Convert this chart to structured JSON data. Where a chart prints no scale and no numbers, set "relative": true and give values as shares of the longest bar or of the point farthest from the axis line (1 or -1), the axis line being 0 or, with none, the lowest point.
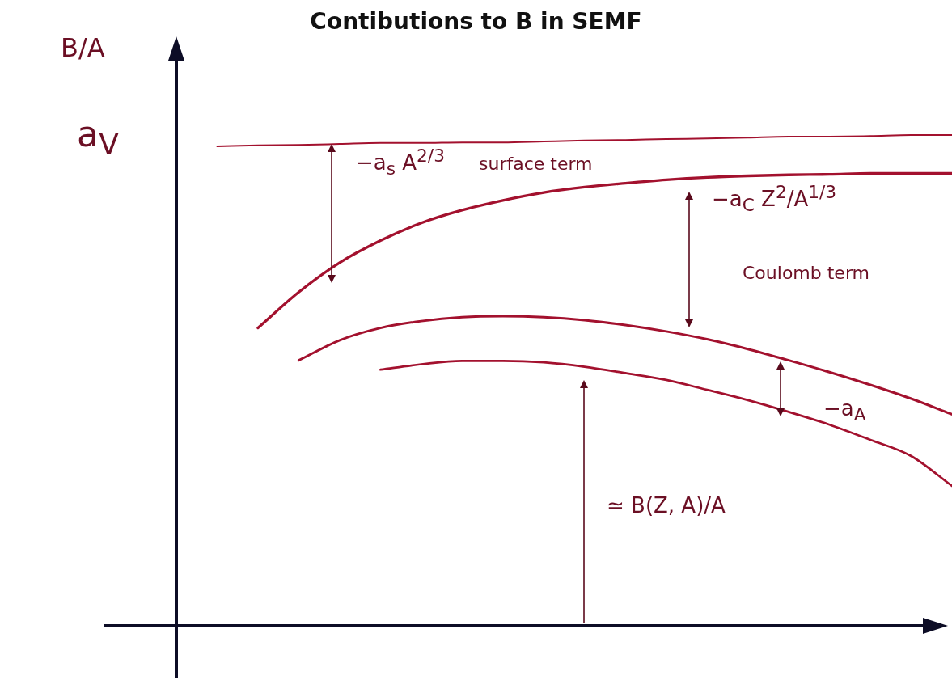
{
  "chart_data": {
    "type": "line",
    "relative": true,
    "title": "Contibutions to B in SEMF",
    "ylabel": "B/A",
    "categories": [
      null,
      null,
      null,
      null,
      null,
      null,
      null,
      null,
      null,
      null,
      null,
      null,
      null,
      null,
      null,
      null,
      null,
      null,
      null,
      null
    ],
    "series": [
      {
        "color": "#a3112e",
        "values": [
          null,
          0.977,
          0.979,
          0.98,
          0.982,
          0.984,
          0.984,
          0.985,
          0.985,
          0.987,
          0.989,
          0.99,
          0.992,
          0.993,
          0.995,
          0.997,
          0.997,
          0.998,
          1,
          1
        ]
      },
      {
        "color": "#a3112e",
        "values": [
          null,
          null,
          0.607,
          0.68,
          0.74,
          0.785,
          0.821,
          0.847,
          0.867,
          0.883,
          0.894,
          0.902,
          0.909,
          0.914,
          0.917,
          0.919,
          0.92,
          0.922,
          0.922,
          0.922
        ]
      },
      {
        "color": "#a3112e",
        "values": [
          null,
          null,
          null,
          0.541,
          0.582,
          0.607,
          0.621,
          0.629,
          0.631,
          0.629,
          0.623,
          0.613,
          0.6,
          0.584,
          0.564,
          0.541,
          0.517,
          0.491,
          0.463,
          0.431
        ]
      },
      {
        "color": "#a3112e",
        "values": [
          null,
          null,
          null,
          null,
          null,
          0.522,
          0.533,
          0.54,
          0.54,
          0.537,
          0.528,
          0.515,
          0.501,
          0.481,
          0.46,
          0.436,
          0.41,
          0.379,
          0.346,
          0.285
        ]
      }
    ],
    "annotations": [
      "a$_{V}$",
      "−a$_{s}$ A$^{2/3}$",
      "surface term",
      "−a$_{C}$ Z$^{2}$/A$^{1/3}$",
      "Coulomb term",
      "−a$_{A}$",
      "≃ B(Z, A)/A"
    ],
    "grid": false,
    "legend": false,
    "marker": "none",
    "line_style": "solid"
  }
}
